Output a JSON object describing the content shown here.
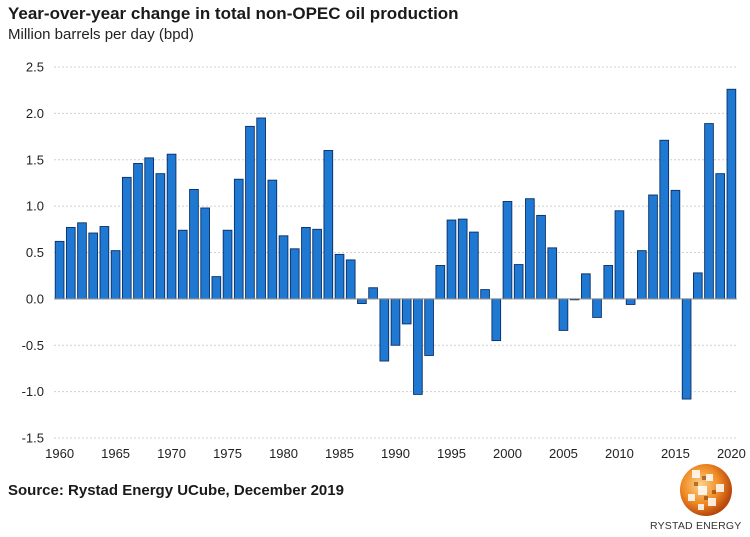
{
  "chart_data": {
    "type": "bar",
    "title": "Year-over-year change in total non-OPEC oil production",
    "ylabel": "Million barrels per day (bpd)",
    "xlabel": "",
    "ylim": [
      -1.5,
      2.5
    ],
    "yticks": [
      "2.5",
      "2.0",
      "1.5",
      "1.0",
      "0.5",
      "0.0",
      "-0.5",
      "-1.0",
      "-1.5"
    ],
    "ytick_values": [
      2.5,
      2.0,
      1.5,
      1.0,
      0.5,
      0.0,
      -0.5,
      -1.0,
      -1.5
    ],
    "xticks": [
      "1960",
      "1965",
      "1970",
      "1975",
      "1980",
      "1985",
      "1990",
      "1995",
      "2000",
      "2005",
      "2010",
      "2015",
      "2020"
    ],
    "xtick_values": [
      1960,
      1965,
      1970,
      1975,
      1980,
      1985,
      1990,
      1995,
      2000,
      2005,
      2010,
      2015,
      2020
    ],
    "years": [
      1960,
      1961,
      1962,
      1963,
      1964,
      1965,
      1966,
      1967,
      1968,
      1969,
      1970,
      1971,
      1972,
      1973,
      1974,
      1975,
      1976,
      1977,
      1978,
      1979,
      1980,
      1981,
      1982,
      1983,
      1984,
      1985,
      1986,
      1987,
      1988,
      1989,
      1990,
      1991,
      1992,
      1993,
      1994,
      1995,
      1996,
      1997,
      1998,
      1999,
      2000,
      2001,
      2002,
      2003,
      2004,
      2005,
      2006,
      2007,
      2008,
      2009,
      2010,
      2011,
      2012,
      2013,
      2014,
      2015,
      2016,
      2017,
      2018,
      2019,
      2020
    ],
    "values": [
      0.62,
      0.77,
      0.82,
      0.71,
      0.78,
      0.52,
      1.31,
      1.46,
      1.52,
      1.35,
      1.56,
      0.74,
      1.18,
      0.98,
      0.24,
      0.74,
      1.29,
      1.86,
      1.95,
      1.28,
      0.68,
      0.54,
      0.77,
      0.75,
      1.6,
      0.48,
      0.42,
      -0.05,
      0.12,
      -0.67,
      -0.5,
      -0.27,
      -1.03,
      -0.61,
      0.36,
      0.85,
      0.86,
      0.72,
      0.1,
      -0.45,
      1.05,
      0.37,
      1.08,
      0.9,
      0.55,
      -0.34,
      -0.01,
      0.27,
      -0.2,
      0.36,
      0.95,
      -0.06,
      0.52,
      1.12,
      1.71,
      1.17,
      -1.08,
      0.28,
      1.89,
      1.35,
      2.26
    ],
    "bar_color": "#1f78d1",
    "bar_edge_color": "#0a2f66",
    "grid": true
  },
  "source": "Source: Rystad Energy UCube, December 2019",
  "logo": {
    "text": "RYSTAD ENERGY"
  }
}
